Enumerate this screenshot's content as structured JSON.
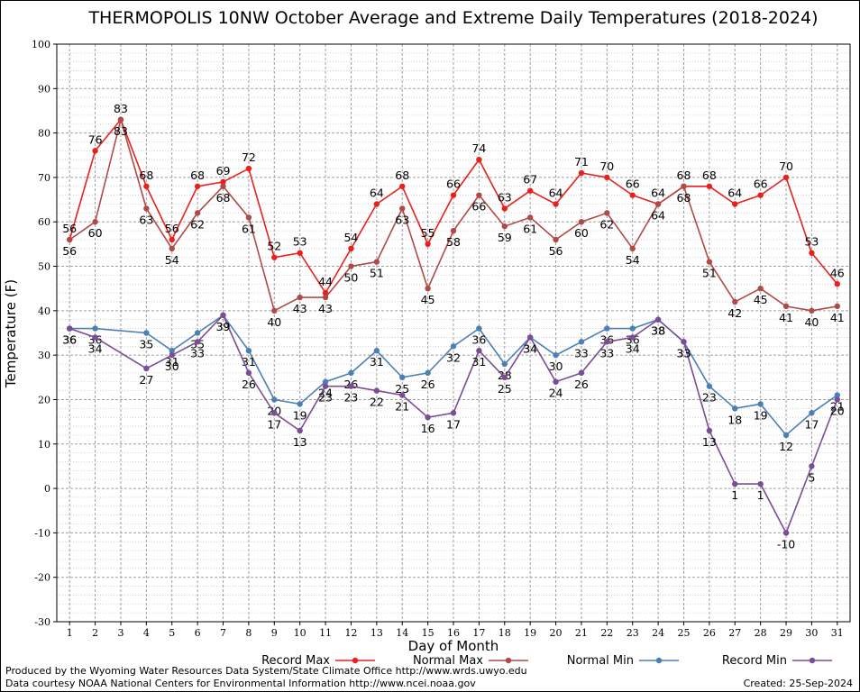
{
  "chart_data": {
    "type": "line",
    "title": "THERMOPOLIS 10NW October Average and Extreme Daily Temperatures (2018-2024)",
    "xlabel": "Day of Month",
    "ylabel": "Temperature (F)",
    "ylim": [
      -30,
      100
    ],
    "ytick_step": 10,
    "x": [
      1,
      2,
      3,
      4,
      5,
      6,
      7,
      8,
      9,
      10,
      11,
      12,
      13,
      14,
      15,
      16,
      17,
      18,
      19,
      20,
      21,
      22,
      23,
      24,
      25,
      26,
      27,
      28,
      29,
      30,
      31
    ],
    "grid": true,
    "legend_position": "bottom",
    "series": [
      {
        "name": "Record Max",
        "color": "#e8211e",
        "label_pos": "above",
        "values": [
          56,
          76,
          83,
          68,
          56,
          68,
          69,
          72,
          52,
          53,
          44,
          54,
          64,
          68,
          55,
          66,
          74,
          63,
          67,
          64,
          71,
          70,
          66,
          64,
          68,
          68,
          64,
          66,
          70,
          53,
          46
        ]
      },
      {
        "name": "Normal Max",
        "color": "#b04a47",
        "label_pos": "below",
        "values": [
          56,
          60,
          83,
          63,
          54,
          62,
          68,
          61,
          40,
          43,
          43,
          50,
          51,
          63,
          45,
          58,
          66,
          59,
          61,
          56,
          60,
          62,
          54,
          64,
          68,
          51,
          42,
          45,
          41,
          40,
          41
        ]
      },
      {
        "name": "Normal Min",
        "color": "#4a80b4",
        "label_pos": "below",
        "values": [
          36,
          36,
          null,
          35,
          31,
          35,
          39,
          31,
          20,
          19,
          24,
          26,
          31,
          25,
          26,
          32,
          36,
          28,
          34,
          30,
          33,
          36,
          36,
          38,
          33,
          23,
          18,
          19,
          12,
          17,
          21
        ]
      },
      {
        "name": "Record Min",
        "color": "#7b4d94",
        "label_pos": "below",
        "values": [
          36,
          34,
          null,
          27,
          30,
          33,
          39,
          26,
          17,
          13,
          23,
          23,
          22,
          21,
          16,
          17,
          31,
          25,
          34,
          24,
          26,
          33,
          34,
          38,
          33,
          13,
          1,
          1,
          -10,
          5,
          20
        ]
      }
    ]
  },
  "footer": {
    "line1": "Produced by the Wyoming Water Resources Data System/State Climate Office http://www.wrds.uwyo.edu",
    "line2": "Data courtesy NOAA National Centers for Environmental Information http://www.ncei.noaa.gov",
    "created": "Created:  25-Sep-2024"
  }
}
